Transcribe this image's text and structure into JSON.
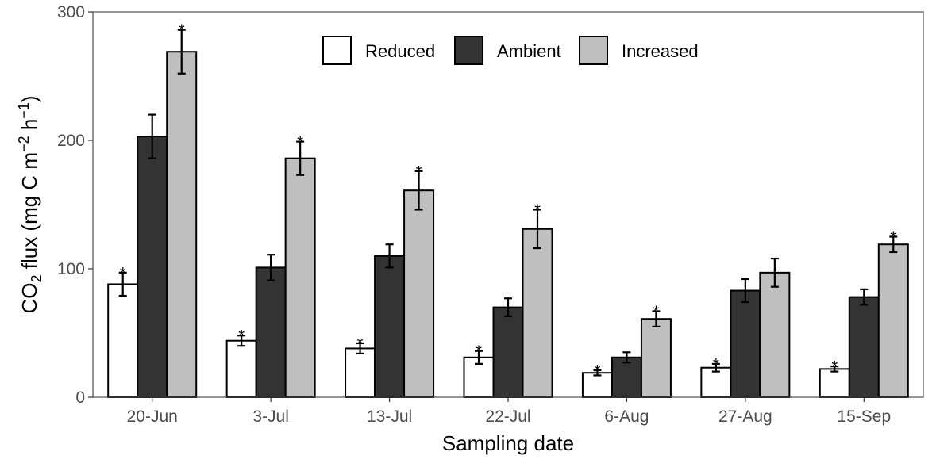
{
  "chart_data": {
    "type": "bar",
    "categories": [
      "20-Jun",
      "3-Jul",
      "13-Jul",
      "22-Jul",
      "6-Aug",
      "27-Aug",
      "15-Sep"
    ],
    "series": [
      {
        "name": "Reduced",
        "color": "#ffffff",
        "values": [
          88,
          44,
          38,
          31,
          19,
          23,
          22
        ],
        "error": [
          9,
          4,
          4,
          5,
          2,
          3,
          2
        ],
        "significant": [
          true,
          true,
          true,
          true,
          true,
          true,
          true
        ]
      },
      {
        "name": "Ambient",
        "color": "#333333",
        "values": [
          203,
          101,
          110,
          70,
          31,
          83,
          78
        ],
        "error": [
          17,
          10,
          9,
          7,
          4,
          9,
          6
        ],
        "significant": [
          false,
          false,
          false,
          false,
          false,
          false,
          false
        ]
      },
      {
        "name": "Increased",
        "color": "#bfbfbf",
        "values": [
          269,
          186,
          161,
          131,
          61,
          97,
          119
        ],
        "error": [
          17,
          13,
          15,
          15,
          6,
          11,
          6
        ],
        "significant": [
          true,
          true,
          true,
          true,
          true,
          false,
          true
        ]
      }
    ],
    "significance_mark": "*",
    "xlabel": "Sampling date",
    "ylabel": {
      "prefix": "CO",
      "prefix_sub": "2",
      "text1": " flux (mg C m",
      "sup1": "−2",
      "text2": " h",
      "sup2": "−1",
      "text3": ")"
    },
    "ylim": [
      0,
      300
    ],
    "yticks": [
      "0",
      "100",
      "200",
      "300"
    ],
    "grid": false,
    "legend_position": "top-center"
  }
}
